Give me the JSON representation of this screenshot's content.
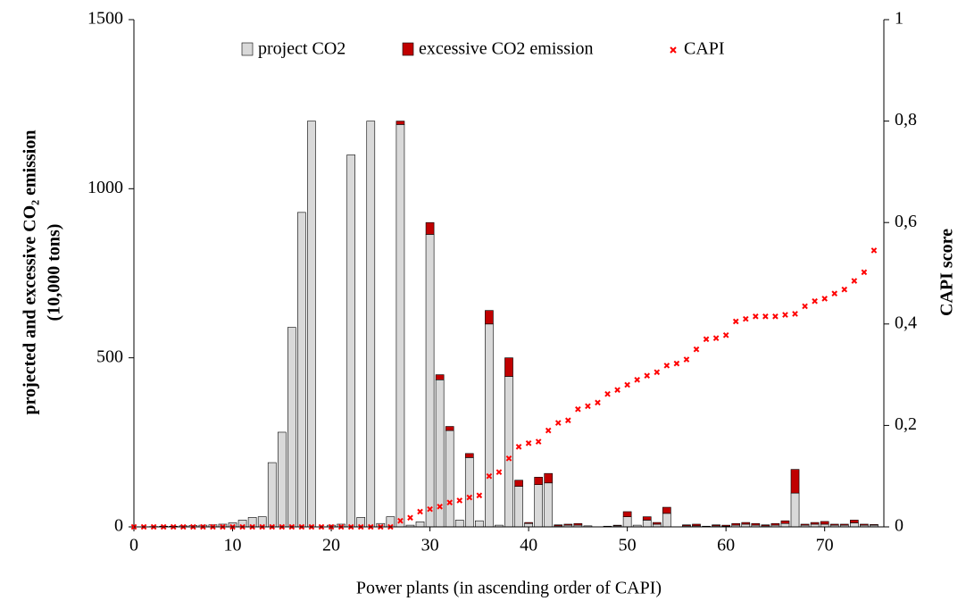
{
  "chart_data": {
    "type": "bar-scatter",
    "xlabel": "Power plants (in ascending order of CAPI)",
    "ylabel": [
      "projected and excessive CO₂ emission",
      "(10,000 tons)"
    ],
    "y2label": "CAPI score",
    "legend": "top",
    "x": [
      0,
      1,
      2,
      3,
      4,
      5,
      6,
      7,
      8,
      9,
      10,
      11,
      12,
      13,
      14,
      15,
      16,
      17,
      18,
      19,
      20,
      21,
      22,
      23,
      24,
      25,
      26,
      27,
      28,
      29,
      30,
      31,
      32,
      33,
      34,
      35,
      36,
      37,
      38,
      39,
      40,
      41,
      42,
      43,
      44,
      45,
      46,
      47,
      48,
      49,
      50,
      51,
      52,
      53,
      54,
      55,
      56,
      57,
      58,
      59,
      60,
      61,
      62,
      63,
      64,
      65,
      66,
      67,
      68,
      69,
      70,
      71,
      72,
      73,
      74,
      75
    ],
    "xlim": [
      0,
      76
    ],
    "xticks": [
      0,
      10,
      20,
      30,
      40,
      50,
      60,
      70
    ],
    "ylim": [
      0,
      1500
    ],
    "yticks": [
      0,
      500,
      1000,
      1500
    ],
    "y2lim": [
      0,
      1
    ],
    "y2ticks": [
      0,
      {
        "value": 0.2,
        "label": "0,2"
      },
      {
        "value": 0.4,
        "label": "0,4"
      },
      {
        "value": 0.6,
        "label": "0,6"
      },
      {
        "value": 0.8,
        "label": "0,8"
      },
      1
    ],
    "series": [
      {
        "name": "project CO2",
        "type": "bar",
        "color": "#d9d9d9",
        "values": [
          0,
          0,
          1,
          2,
          2,
          3,
          4,
          5,
          6,
          8,
          12,
          20,
          28,
          30,
          190,
          280,
          590,
          930,
          1200,
          0,
          5,
          8,
          1100,
          28,
          1200,
          10,
          30,
          1190,
          5,
          15,
          865,
          435,
          285,
          20,
          205,
          18,
          600,
          5,
          445,
          120,
          10,
          125,
          130,
          3,
          5,
          5,
          3,
          0,
          2,
          3,
          30,
          5,
          20,
          8,
          40,
          0,
          3,
          3,
          2,
          3,
          2,
          5,
          8,
          5,
          3,
          5,
          10,
          100,
          5,
          8,
          8,
          5,
          5,
          12,
          5,
          5
        ]
      },
      {
        "name": "excessive CO2 emission",
        "type": "bar",
        "color": "#c00000",
        "values": [
          0,
          0,
          0,
          0,
          0,
          0,
          0,
          0,
          0,
          0,
          0,
          0,
          0,
          0,
          0,
          0,
          0,
          0,
          0,
          0,
          0,
          0,
          0,
          0,
          0,
          0,
          0,
          10,
          0,
          0,
          35,
          15,
          12,
          0,
          12,
          0,
          40,
          0,
          55,
          18,
          3,
          22,
          28,
          3,
          3,
          5,
          0,
          0,
          0,
          2,
          15,
          0,
          10,
          5,
          18,
          0,
          3,
          5,
          0,
          3,
          3,
          5,
          5,
          5,
          3,
          5,
          8,
          70,
          3,
          5,
          8,
          3,
          3,
          8,
          3,
          2
        ]
      },
      {
        "name": "CAPI",
        "type": "scatter",
        "axis": "y2",
        "color": "#ff0000",
        "values": [
          0,
          0,
          0,
          0,
          0,
          0,
          0,
          0,
          0,
          0,
          0,
          0,
          0,
          0,
          0,
          0,
          0,
          0,
          0,
          0,
          0,
          0,
          0,
          0,
          0,
          0,
          0,
          0.012,
          0.018,
          0.03,
          0.035,
          0.04,
          0.048,
          0.052,
          0.058,
          0.062,
          0.1,
          0.108,
          0.135,
          0.158,
          0.165,
          0.168,
          0.19,
          0.205,
          0.21,
          0.232,
          0.238,
          0.245,
          0.262,
          0.27,
          0.28,
          0.29,
          0.298,
          0.305,
          0.318,
          0.322,
          0.33,
          0.35,
          0.37,
          0.372,
          0.378,
          0.405,
          0.41,
          0.415,
          0.415,
          0.415,
          0.418,
          0.42,
          0.435,
          0.445,
          0.45,
          0.46,
          0.468,
          0.485,
          0.502,
          0.545
        ]
      }
    ]
  }
}
